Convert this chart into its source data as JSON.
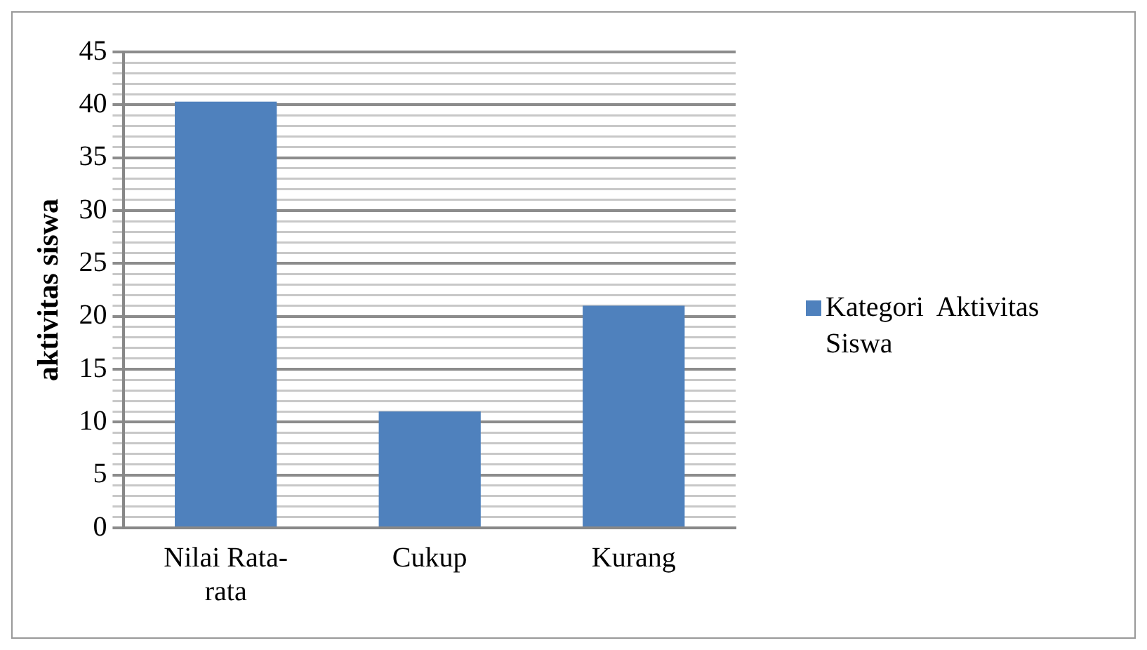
{
  "chart_data": {
    "type": "bar",
    "ylabel": "aktivitas siswa",
    "categories": [
      "Nilai Rata-rata",
      "Cukup",
      "Kurang"
    ],
    "series": [
      {
        "name": "Kategori  Aktivitas Siswa",
        "color": "#4f81bd",
        "values": [
          40.3,
          11,
          21
        ]
      }
    ],
    "ylim": [
      0,
      45
    ],
    "yticks": [
      0,
      {
        "value": 1,
        "label": null
      },
      {
        "value": 2,
        "label": null
      },
      {
        "value": 3,
        "label": null
      },
      {
        "value": 4,
        "label": null
      },
      5,
      {
        "value": 6,
        "label": null
      },
      {
        "value": 7,
        "label": null
      },
      {
        "value": 8,
        "label": null
      },
      {
        "value": 9,
        "label": null
      },
      10,
      {
        "value": 11,
        "label": null
      },
      {
        "value": 12,
        "label": null
      },
      {
        "value": 13,
        "label": null
      },
      {
        "value": 14,
        "label": null
      },
      15,
      {
        "value": 16,
        "label": null
      },
      {
        "value": 17,
        "label": null
      },
      {
        "value": 18,
        "label": null
      },
      {
        "value": 19,
        "label": null
      },
      20,
      {
        "value": 21,
        "label": null
      },
      {
        "value": 22,
        "label": null
      },
      {
        "value": 23,
        "label": null
      },
      {
        "value": 24,
        "label": null
      },
      25,
      {
        "value": 26,
        "label": null
      },
      {
        "value": 27,
        "label": null
      },
      {
        "value": 28,
        "label": null
      },
      {
        "value": 29,
        "label": null
      },
      30,
      {
        "value": 31,
        "label": null
      },
      {
        "value": 32,
        "label": null
      },
      {
        "value": 33,
        "label": null
      },
      {
        "value": 34,
        "label": null
      },
      35,
      {
        "value": 36,
        "label": null
      },
      {
        "value": 37,
        "label": null
      },
      {
        "value": 38,
        "label": null
      },
      {
        "value": 39,
        "label": null
      },
      40,
      {
        "value": 41,
        "label": null
      },
      {
        "value": 42,
        "label": null
      },
      {
        "value": 43,
        "label": null
      },
      {
        "value": 44,
        "label": null
      },
      45
    ],
    "grid": "y",
    "legend": "right"
  }
}
